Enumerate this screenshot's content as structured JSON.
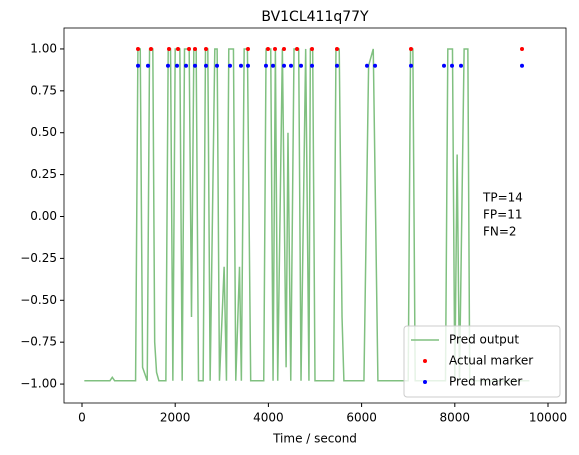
{
  "chart_data": {
    "type": "line",
    "title": "BV1CL411q77Y",
    "xlabel": "Time / second",
    "xlim": [
      -386,
      10386
    ],
    "ylim": [
      -1.113,
      1.125
    ],
    "xticks": [
      0,
      2000,
      4000,
      6000,
      8000,
      10000
    ],
    "yticks": [
      {
        "value": -1,
        "label": "−1.00"
      },
      {
        "value": -0.75,
        "label": "−0.75"
      },
      {
        "value": -0.5,
        "label": "−0.50"
      },
      {
        "value": -0.25,
        "label": "−0.25"
      },
      {
        "value": 0,
        "label": "0.00"
      },
      {
        "value": 0.25,
        "label": "0.25"
      },
      {
        "value": 0.5,
        "label": "0.50"
      },
      {
        "value": 0.75,
        "label": "0.75"
      },
      {
        "value": 1,
        "label": "1.00"
      }
    ],
    "legend": "lower right",
    "annotation": [
      "TP=14",
      "FP=11",
      "FN=2"
    ],
    "series": [
      {
        "name": "Pred output",
        "type": "line",
        "color": "#80c080",
        "x": [
          50,
          600,
          650,
          700,
          1150,
          1200,
          1250,
          1300,
          1400,
          1450,
          1520,
          1560,
          1600,
          1650,
          1800,
          1850,
          1900,
          1950,
          2000,
          2100,
          2150,
          2200,
          2300,
          2350,
          2400,
          2450,
          2500,
          2600,
          2650,
          2700,
          2750,
          2850,
          2900,
          2950,
          3050,
          3100,
          3150,
          3250,
          3300,
          3380,
          3420,
          3480,
          3550,
          3620,
          3900,
          3950,
          4050,
          4100,
          4150,
          4200,
          4300,
          4380,
          4420,
          4480,
          4550,
          4650,
          4700,
          4800,
          4870,
          4900,
          4950,
          5000,
          5400,
          5450,
          5520,
          5580,
          5620,
          6050,
          6150,
          6250,
          6350,
          7000,
          7050,
          7100,
          7150,
          7800,
          7850,
          7950,
          8000,
          8050,
          8100,
          8200,
          8280,
          8320,
          9400,
          9450,
          9600
        ],
        "values": [
          -0.98,
          -0.98,
          -0.96,
          -0.98,
          -0.98,
          1,
          1,
          -0.9,
          -0.98,
          1,
          1,
          -0.75,
          -0.93,
          -0.98,
          -0.98,
          1,
          1,
          -0.98,
          1,
          1,
          -0.98,
          1,
          1,
          -0.6,
          1,
          1,
          -0.98,
          -0.98,
          1,
          1,
          -0.98,
          1,
          1,
          -0.98,
          -0.3,
          -0.98,
          1,
          1,
          -0.98,
          -0.3,
          -0.98,
          1,
          1,
          -0.98,
          -0.98,
          1,
          1,
          -0.98,
          1,
          -0.98,
          1,
          -0.9,
          0.5,
          -0.98,
          1,
          1,
          -0.98,
          1,
          -0.98,
          1,
          1,
          -0.98,
          -0.98,
          1,
          1,
          -0.6,
          -0.98,
          -0.98,
          0.9,
          1,
          -0.98,
          -0.98,
          1,
          1,
          -0.98,
          -0.98,
          1,
          1,
          -0.98,
          0.37,
          -0.98,
          1,
          1,
          -0.98,
          -0.98,
          -0.98,
          -0.98
        ]
      },
      {
        "name": "Actual marker",
        "type": "scatter",
        "color": "#ff0000",
        "x": [
          1202,
          1481,
          1867,
          2060,
          2296,
          2425,
          2661,
          3562,
          3991,
          4142,
          4335,
          4614,
          4936,
          5472,
          7060,
          9442
        ],
        "values": [
          1,
          1,
          1,
          1,
          1,
          1,
          1,
          1,
          1,
          1,
          1,
          1,
          1,
          1,
          1,
          1
        ]
      },
      {
        "name": "Pred marker",
        "type": "scatter",
        "color": "#0000ff",
        "x": [
          1202,
          1416,
          1845,
          2039,
          2232,
          2425,
          2661,
          2897,
          3176,
          3412,
          3562,
          3948,
          4099,
          4335,
          4485,
          4700,
          4936,
          5472,
          6116,
          6288,
          7060,
          7768,
          7940,
          8133,
          9442
        ],
        "values": [
          0.9,
          0.9,
          0.9,
          0.9,
          0.9,
          0.9,
          0.9,
          0.9,
          0.9,
          0.9,
          0.9,
          0.9,
          0.9,
          0.9,
          0.9,
          0.9,
          0.9,
          0.9,
          0.9,
          0.9,
          0.9,
          0.9,
          0.9,
          0.9,
          0.9
        ]
      }
    ]
  }
}
